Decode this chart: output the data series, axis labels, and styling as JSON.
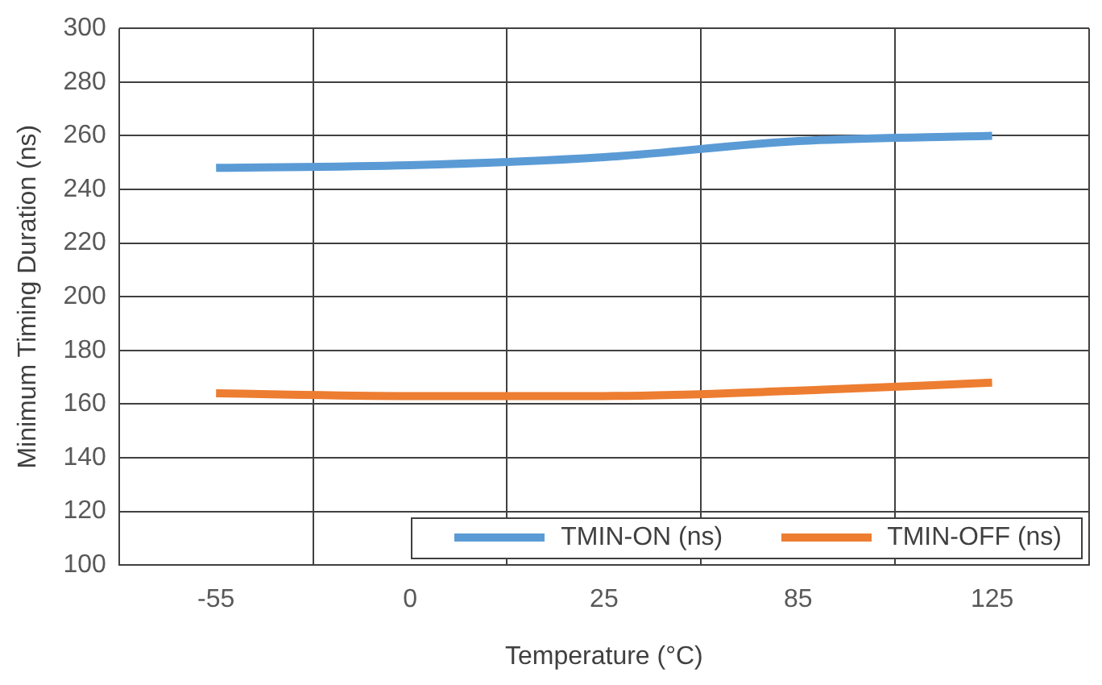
{
  "chart_data": {
    "type": "line",
    "xlabel": "Temperature (°C)",
    "ylabel": "Minimum Timing Duration (ns)",
    "categories": [
      "-55",
      "0",
      "25",
      "85",
      "125"
    ],
    "series": [
      {
        "name": "TMIN-ON (ns)",
        "color": "#5b9bd5",
        "values": [
          248,
          249,
          252,
          258,
          260
        ]
      },
      {
        "name": "TMIN-OFF (ns)",
        "color": "#ed7d31",
        "values": [
          164,
          163,
          163,
          165,
          168
        ]
      }
    ],
    "ylim": [
      100,
      300
    ],
    "yticks": [
      100,
      120,
      140,
      160,
      180,
      200,
      220,
      240,
      260,
      280,
      300
    ],
    "grid": true,
    "legend": "bottom right",
    "marker": "none",
    "line_style": "solid"
  }
}
